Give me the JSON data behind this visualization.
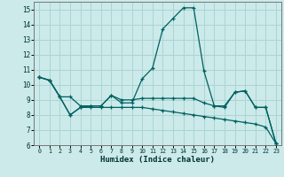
{
  "xlabel": "Humidex (Indice chaleur)",
  "bg_color": "#cceaea",
  "grid_color": "#aad4d4",
  "line_color": "#006060",
  "xlim": [
    -0.5,
    23.5
  ],
  "ylim": [
    6,
    15.5
  ],
  "yticks": [
    6,
    7,
    8,
    9,
    10,
    11,
    12,
    13,
    14,
    15
  ],
  "xticks": [
    0,
    1,
    2,
    3,
    4,
    5,
    6,
    7,
    8,
    9,
    10,
    11,
    12,
    13,
    14,
    15,
    16,
    17,
    18,
    19,
    20,
    21,
    22,
    23
  ],
  "line1_x": [
    0,
    1,
    2,
    3,
    4,
    5,
    6,
    7,
    8,
    9,
    10,
    11,
    12,
    13,
    14,
    15,
    16,
    17,
    18,
    19,
    20,
    21,
    22,
    23
  ],
  "line1_y": [
    10.5,
    10.3,
    9.2,
    8.0,
    8.5,
    8.6,
    8.6,
    9.3,
    8.8,
    8.8,
    10.4,
    11.1,
    13.7,
    14.4,
    15.1,
    15.1,
    10.9,
    8.6,
    8.5,
    9.5,
    9.6,
    8.5,
    8.5,
    6.1
  ],
  "line2_x": [
    0,
    1,
    2,
    3,
    4,
    5,
    6,
    7,
    8,
    9,
    10,
    11,
    12,
    13,
    14,
    15,
    16,
    17,
    18,
    19,
    20,
    21,
    22,
    23
  ],
  "line2_y": [
    10.5,
    10.3,
    9.2,
    9.2,
    8.6,
    8.6,
    8.6,
    9.3,
    9.0,
    9.0,
    9.1,
    9.1,
    9.1,
    9.1,
    9.1,
    9.1,
    8.8,
    8.6,
    8.6,
    9.5,
    9.6,
    8.5,
    8.5,
    6.1
  ],
  "line3_x": [
    0,
    1,
    2,
    3,
    4,
    5,
    6,
    7,
    8,
    9,
    10,
    11,
    12,
    13,
    14,
    15,
    16,
    17,
    18,
    19,
    20,
    21,
    22,
    23
  ],
  "line3_y": [
    10.5,
    10.3,
    9.2,
    8.0,
    8.5,
    8.5,
    8.5,
    8.5,
    8.5,
    8.5,
    8.5,
    8.4,
    8.3,
    8.2,
    8.1,
    8.0,
    7.9,
    7.8,
    7.7,
    7.6,
    7.5,
    7.4,
    7.2,
    6.1
  ]
}
